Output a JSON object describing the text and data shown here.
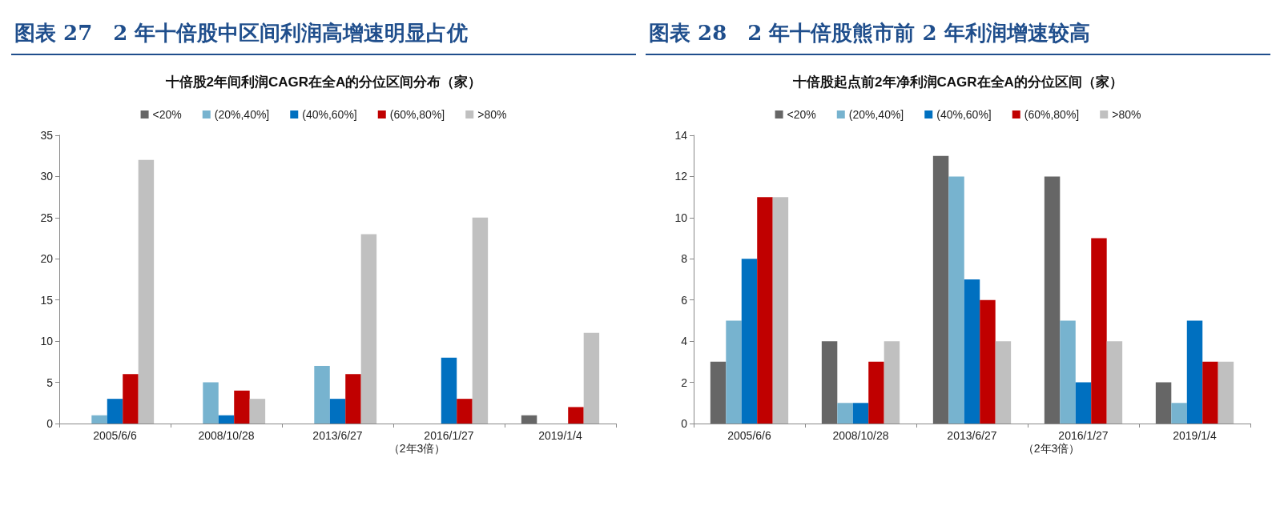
{
  "chart_data": [
    {
      "type": "bar",
      "title": "图表 27　2 年十倍股中区间利润高增速明显占优",
      "subtitle": "十倍股2年间利润CAGR在全A的分位区间分布（家）",
      "categories": [
        "2005/6/6",
        "2008/10/28",
        "2013/6/27",
        "2016/1/27",
        "2019/1/4"
      ],
      "series": [
        {
          "name": "<20%",
          "color": "#666666",
          "values": [
            0,
            0,
            0,
            0,
            1
          ]
        },
        {
          "name": "(20%,40%]",
          "color": "#77b3cf",
          "values": [
            1,
            5,
            7,
            0,
            0
          ]
        },
        {
          "name": "(40%,60%]",
          "color": "#0070c0",
          "values": [
            3,
            1,
            3,
            8,
            0
          ]
        },
        {
          "name": "(60%,80%]",
          "color": "#c00000",
          "values": [
            6,
            4,
            6,
            3,
            2
          ]
        },
        {
          "name": ">80%",
          "color": "#c0c0c0",
          "values": [
            32,
            3,
            23,
            25,
            11
          ]
        }
      ],
      "ylim": [
        0,
        35
      ],
      "yticks": [
        0,
        5,
        10,
        15,
        20,
        25,
        30,
        35
      ],
      "grid": false,
      "legend": "top",
      "annotations": [
        "（2年3倍）"
      ]
    },
    {
      "type": "bar",
      "title": "图表 28　2 年十倍股熊市前 2 年利润增速较高",
      "subtitle": "十倍股起点前2年净利润CAGR在全A的分位区间（家）",
      "categories": [
        "2005/6/6",
        "2008/10/28",
        "2013/6/27",
        "2016/1/27",
        "2019/1/4"
      ],
      "series": [
        {
          "name": "<20%",
          "color": "#666666",
          "values": [
            3,
            4,
            13,
            12,
            2
          ]
        },
        {
          "name": "(20%,40%]",
          "color": "#77b3cf",
          "values": [
            5,
            1,
            12,
            5,
            1
          ]
        },
        {
          "name": "(40%,60%]",
          "color": "#0070c0",
          "values": [
            8,
            1,
            7,
            2,
            5
          ]
        },
        {
          "name": "(60%,80%]",
          "color": "#c00000",
          "values": [
            11,
            3,
            6,
            9,
            3
          ]
        },
        {
          "name": ">80%",
          "color": "#c0c0c0",
          "values": [
            11,
            4,
            4,
            4,
            3
          ]
        }
      ],
      "ylim": [
        0,
        14
      ],
      "yticks": [
        0,
        2,
        4,
        6,
        8,
        10,
        12,
        14
      ],
      "grid": false,
      "legend": "top",
      "annotations": [
        "（2年3倍）"
      ]
    }
  ]
}
